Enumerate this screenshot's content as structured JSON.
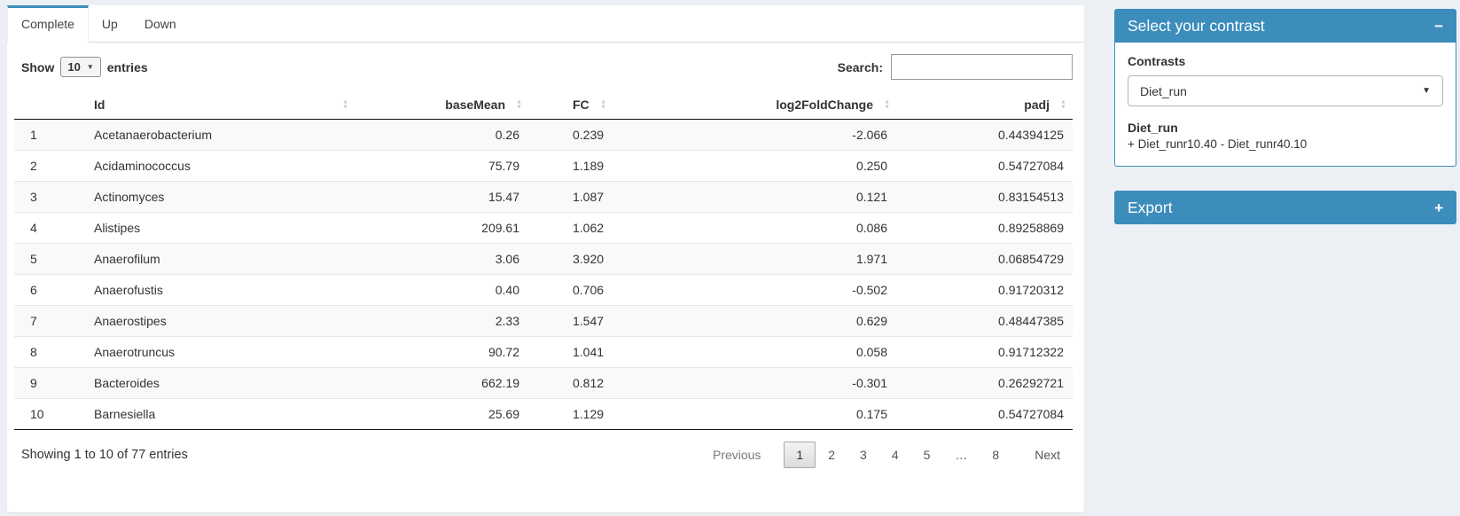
{
  "tabs": [
    {
      "label": "Complete",
      "active": true
    },
    {
      "label": "Up",
      "active": false
    },
    {
      "label": "Down",
      "active": false
    }
  ],
  "table_controls": {
    "show_label_before": "Show",
    "show_value": "10",
    "show_label_after": "entries",
    "search_label": "Search:",
    "search_value": ""
  },
  "table": {
    "columns": [
      {
        "label": "",
        "key": "row-number",
        "align": "left",
        "sortable": false
      },
      {
        "label": "Id",
        "key": "id",
        "align": "left",
        "sortable": true
      },
      {
        "label": "baseMean",
        "key": "basemean",
        "align": "right",
        "sortable": true
      },
      {
        "label": "FC",
        "key": "fc",
        "align": "fc-left",
        "sortable": true
      },
      {
        "label": "log2FoldChange",
        "key": "log2foldchange",
        "align": "right",
        "sortable": true
      },
      {
        "label": "padj",
        "key": "padj",
        "align": "right",
        "sortable": true
      }
    ],
    "rows": [
      [
        "1",
        "Acetanaerobacterium",
        "0.26",
        "0.239",
        "-2.066",
        "0.44394125"
      ],
      [
        "2",
        "Acidaminococcus",
        "75.79",
        "1.189",
        "0.250",
        "0.54727084"
      ],
      [
        "3",
        "Actinomyces",
        "15.47",
        "1.087",
        "0.121",
        "0.83154513"
      ],
      [
        "4",
        "Alistipes",
        "209.61",
        "1.062",
        "0.086",
        "0.89258869"
      ],
      [
        "5",
        "Anaerofilum",
        "3.06",
        "3.920",
        "1.971",
        "0.06854729"
      ],
      [
        "6",
        "Anaerofustis",
        "0.40",
        "0.706",
        "-0.502",
        "0.91720312"
      ],
      [
        "7",
        "Anaerostipes",
        "2.33",
        "1.547",
        "0.629",
        "0.48447385"
      ],
      [
        "8",
        "Anaerotruncus",
        "90.72",
        "1.041",
        "0.058",
        "0.91712322"
      ],
      [
        "9",
        "Bacteroides",
        "662.19",
        "0.812",
        "-0.301",
        "0.26292721"
      ],
      [
        "10",
        "Barnesiella",
        "25.69",
        "1.129",
        "0.175",
        "0.54727084"
      ]
    ],
    "info": "Showing 1 to 10 of 77 entries",
    "pagination": {
      "previous": "Previous",
      "pages": [
        "1",
        "2",
        "3",
        "4",
        "5",
        "…",
        "8"
      ],
      "active_page": "1",
      "next": "Next"
    }
  },
  "contrast_panel": {
    "title": "Select your contrast",
    "collapse_icon": "−",
    "contrasts_label": "Contrasts",
    "selected_contrast": "Diet_run",
    "detail_title": "Diet_run",
    "detail_formula": "+ Diet_runr10.40 - Diet_runr40.10"
  },
  "export_panel": {
    "title": "Export",
    "expand_icon": "+"
  },
  "colors": {
    "primary": "#3c8dbc",
    "page_bg": "#ecf0f5",
    "stripe": "#f9f9f9"
  }
}
